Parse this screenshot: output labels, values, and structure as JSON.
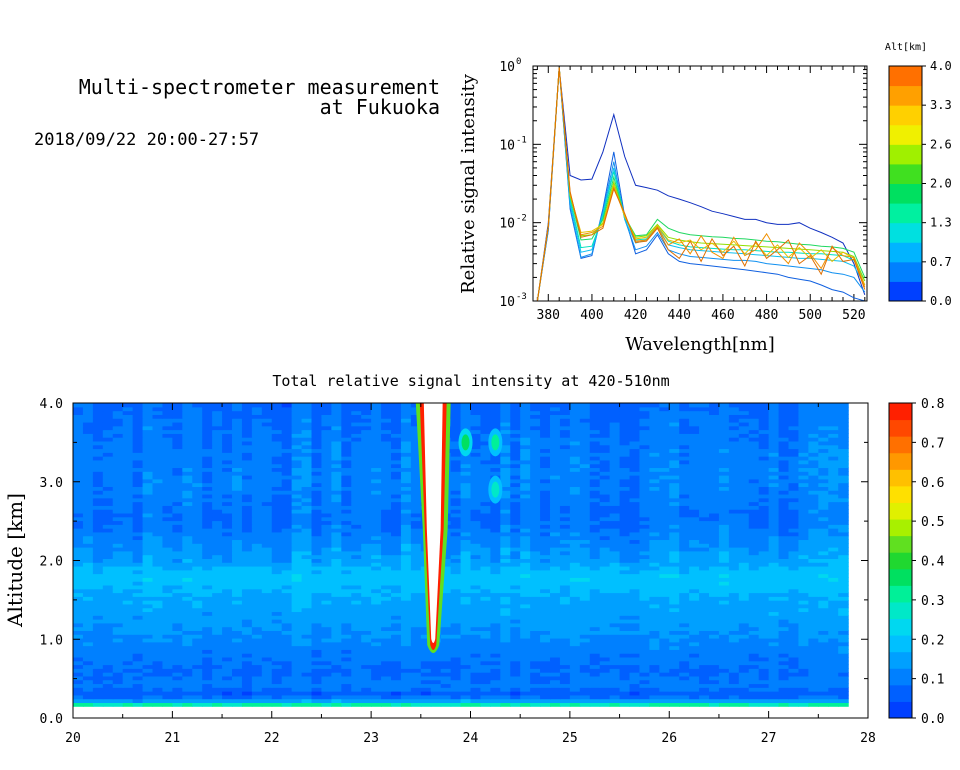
{
  "header": {
    "title_line1": "Multi-spectrometer measurement",
    "title_line2": "at Fukuoka",
    "datetime": "2018/09/22 20:00-27:57"
  },
  "chart_data": [
    {
      "type": "line",
      "xlabel": "Wavelength[nm]",
      "ylabel": "Relative signal intensity",
      "xlim": [
        373,
        526
      ],
      "ylim": [
        0.001,
        1
      ],
      "yscale": "log",
      "x_ticks": [
        380,
        400,
        420,
        440,
        460,
        480,
        500,
        520
      ],
      "y_ticks": [
        {
          "base": "10",
          "exp": "0"
        },
        {
          "base": "10",
          "exp": "-1"
        },
        {
          "base": "10",
          "exp": "-2"
        },
        {
          "base": "10",
          "exp": "-3"
        }
      ],
      "colorbar": {
        "title": "Alt[km]",
        "ticks": [
          "4.0",
          "3.3",
          "2.6",
          "2.0",
          "1.3",
          "0.7",
          "0.0"
        ],
        "colors": [
          "#0040ff",
          "#0080ff",
          "#00b4ff",
          "#00e0e0",
          "#00f0a0",
          "#00e060",
          "#40e020",
          "#a0f000",
          "#f0f000",
          "#ffd000",
          "#ffa000",
          "#ff7000"
        ]
      },
      "x": [
        375,
        380,
        385,
        390,
        395,
        400,
        405,
        410,
        415,
        420,
        425,
        430,
        435,
        440,
        445,
        450,
        455,
        460,
        465,
        470,
        475,
        480,
        485,
        490,
        495,
        500,
        505,
        510,
        515,
        520,
        525
      ],
      "series": [
        {
          "color": "#1030c0",
          "values": [
            0.001,
            0.01,
            0.95,
            0.04,
            0.035,
            0.036,
            0.08,
            0.24,
            0.07,
            0.03,
            0.028,
            0.026,
            0.022,
            0.02,
            0.018,
            0.016,
            0.014,
            0.013,
            0.012,
            0.011,
            0.011,
            0.01,
            0.0095,
            0.0095,
            0.01,
            0.0085,
            0.0075,
            0.0065,
            0.0055,
            0.003,
            0.0012
          ]
        },
        {
          "color": "#1060e0",
          "values": [
            0.001,
            0.008,
            0.95,
            0.015,
            0.0035,
            0.0038,
            0.015,
            0.08,
            0.012,
            0.004,
            0.0045,
            0.007,
            0.004,
            0.0032,
            0.003,
            0.0029,
            0.0028,
            0.0027,
            0.0026,
            0.0025,
            0.0024,
            0.0023,
            0.0022,
            0.002,
            0.0019,
            0.0018,
            0.0016,
            0.0014,
            0.0013,
            0.0011,
            0.001
          ]
        },
        {
          "color": "#1090f0",
          "values": [
            0.001,
            0.008,
            0.95,
            0.016,
            0.0036,
            0.004,
            0.014,
            0.06,
            0.011,
            0.0045,
            0.005,
            0.0075,
            0.0045,
            0.004,
            0.0037,
            0.0036,
            0.0035,
            0.0034,
            0.0033,
            0.0033,
            0.0032,
            0.003,
            0.0029,
            0.0028,
            0.0027,
            0.0026,
            0.0025,
            0.0023,
            0.0022,
            0.002,
            0.0013
          ]
        },
        {
          "color": "#10c0f0",
          "values": [
            0.001,
            0.009,
            0.95,
            0.018,
            0.0042,
            0.0045,
            0.013,
            0.05,
            0.011,
            0.0055,
            0.006,
            0.0085,
            0.0052,
            0.0048,
            0.0045,
            0.0044,
            0.0043,
            0.0042,
            0.0041,
            0.004,
            0.0039,
            0.0038,
            0.0037,
            0.0036,
            0.0035,
            0.0035,
            0.0034,
            0.0033,
            0.0032,
            0.0028,
            0.0016
          ]
        },
        {
          "color": "#00e0c0",
          "values": [
            0.001,
            0.009,
            0.95,
            0.02,
            0.0048,
            0.005,
            0.012,
            0.045,
            0.012,
            0.006,
            0.0062,
            0.009,
            0.0058,
            0.0052,
            0.0049,
            0.0048,
            0.0047,
            0.0046,
            0.0045,
            0.0045,
            0.0044,
            0.0043,
            0.0042,
            0.0042,
            0.0041,
            0.004,
            0.004,
            0.0039,
            0.0038,
            0.0033,
            0.0018
          ]
        },
        {
          "color": "#20d860",
          "values": [
            0.001,
            0.009,
            0.95,
            0.022,
            0.006,
            0.0062,
            0.011,
            0.038,
            0.012,
            0.0068,
            0.007,
            0.011,
            0.0085,
            0.0075,
            0.007,
            0.0068,
            0.0066,
            0.0065,
            0.0063,
            0.0062,
            0.006,
            0.0058,
            0.0057,
            0.0055,
            0.0053,
            0.0052,
            0.005,
            0.0049,
            0.0047,
            0.0042,
            0.002
          ]
        },
        {
          "color": "#90e000",
          "values": [
            0.001,
            0.009,
            0.95,
            0.022,
            0.0068,
            0.007,
            0.01,
            0.033,
            0.012,
            0.0065,
            0.0068,
            0.0095,
            0.0065,
            0.006,
            0.0057,
            0.0055,
            0.0054,
            0.0053,
            0.0052,
            0.0051,
            0.005,
            0.0049,
            0.0048,
            0.0047,
            0.0046,
            0.0045,
            0.0044,
            0.0043,
            0.0042,
            0.0037,
            0.0018
          ]
        },
        {
          "color": "#e8c000",
          "values": [
            0.001,
            0.009,
            0.95,
            0.023,
            0.0075,
            0.0078,
            0.0095,
            0.03,
            0.012,
            0.0062,
            0.0065,
            0.0092,
            0.006,
            0.0055,
            0.006,
            0.0045,
            0.0055,
            0.0042,
            0.0058,
            0.004,
            0.0055,
            0.0038,
            0.0052,
            0.0036,
            0.0048,
            0.0035,
            0.0045,
            0.0032,
            0.0042,
            0.0035,
            0.0016
          ]
        },
        {
          "color": "#f09000",
          "values": [
            0.001,
            0.009,
            0.95,
            0.024,
            0.007,
            0.0075,
            0.009,
            0.028,
            0.013,
            0.0058,
            0.006,
            0.0088,
            0.0052,
            0.0062,
            0.004,
            0.0068,
            0.0042,
            0.0035,
            0.0065,
            0.0038,
            0.0045,
            0.0072,
            0.0042,
            0.003,
            0.0055,
            0.004,
            0.0026,
            0.0048,
            0.0038,
            0.0036,
            0.0015
          ]
        },
        {
          "color": "#e07000",
          "values": [
            0.001,
            0.009,
            0.95,
            0.025,
            0.0065,
            0.007,
            0.0085,
            0.027,
            0.013,
            0.0056,
            0.0058,
            0.0085,
            0.0045,
            0.0035,
            0.0058,
            0.0032,
            0.0062,
            0.0038,
            0.005,
            0.0028,
            0.0058,
            0.0035,
            0.0045,
            0.006,
            0.003,
            0.0038,
            0.0022,
            0.005,
            0.0032,
            0.0034,
            0.0014
          ]
        }
      ]
    },
    {
      "type": "heatmap",
      "title": "Total relative signal intensity at 420-510nm",
      "ylabel": "Altitude [km]",
      "xlim": [
        20,
        28
      ],
      "ylim": [
        0,
        4
      ],
      "x_ticks": [
        "20",
        "21",
        "22",
        "23",
        "24",
        "25",
        "26",
        "27",
        "28"
      ],
      "y_ticks": [
        "4.0",
        "3.0",
        "2.0",
        "1.0",
        "0.0"
      ],
      "data_extent_x": [
        20,
        27.8
      ],
      "data_extent_y": [
        0.15,
        4.0
      ],
      "colorbar": {
        "ticks": [
          "0.8",
          "0.7",
          "0.6",
          "0.5",
          "0.4",
          "0.3",
          "0.2",
          "0.1",
          "0.0"
        ],
        "range": [
          0,
          0.8
        ],
        "colors": [
          "#0040ff",
          "#0060ff",
          "#0080ff",
          "#00a0ff",
          "#00c0ff",
          "#00d8f0",
          "#00e8c8",
          "#00f098",
          "#00e060",
          "#20d830",
          "#60e020",
          "#a8f000",
          "#e0f000",
          "#ffe000",
          "#ffc000",
          "#ff9800",
          "#ff7000",
          "#ff4800",
          "#ff2000"
        ]
      },
      "altitude_profile": [
        {
          "alt": 0.15,
          "value": 0.38
        },
        {
          "alt": 0.22,
          "value": 0.15
        },
        {
          "alt": 0.3,
          "value": 0.05
        },
        {
          "alt": 0.4,
          "value": 0.1
        },
        {
          "alt": 0.6,
          "value": 0.08
        },
        {
          "alt": 0.8,
          "value": 0.1
        },
        {
          "alt": 1.0,
          "value": 0.12
        },
        {
          "alt": 1.2,
          "value": 0.14
        },
        {
          "alt": 1.5,
          "value": 0.16
        },
        {
          "alt": 1.8,
          "value": 0.2
        },
        {
          "alt": 2.0,
          "value": 0.15
        },
        {
          "alt": 2.5,
          "value": 0.09
        },
        {
          "alt": 3.0,
          "value": 0.11
        },
        {
          "alt": 3.5,
          "value": 0.1
        },
        {
          "alt": 4.0,
          "value": 0.08
        }
      ],
      "features": [
        {
          "name": "plume",
          "time_start": 23.5,
          "time_end": 23.75,
          "alt_bottom": 0.8,
          "alt_top": 4.0,
          "value": 0.8
        },
        {
          "name": "patch",
          "time": 23.95,
          "alt": 3.5,
          "value": 0.35
        },
        {
          "name": "patch",
          "time": 24.25,
          "alt": 3.5,
          "value": 0.3
        },
        {
          "name": "patch",
          "time": 24.25,
          "alt": 2.9,
          "value": 0.28
        }
      ]
    }
  ]
}
